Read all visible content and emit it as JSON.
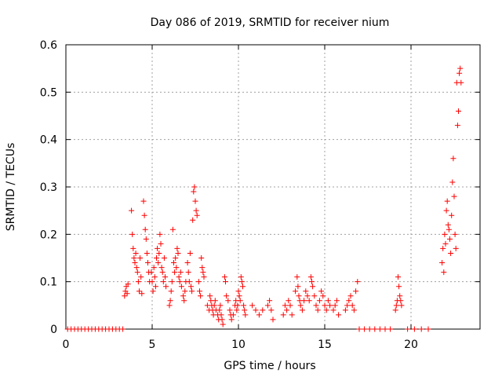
{
  "chart_data": {
    "type": "scatter",
    "title": "Day 086 of 2019, SRMTID for receiver nium",
    "xlabel": "GPS time / hours",
    "ylabel": "SRMTID / TECUs",
    "xlim": [
      0,
      24
    ],
    "ylim": [
      0,
      0.6
    ],
    "x_ticks": [
      0,
      5,
      10,
      15,
      20
    ],
    "y_ticks": [
      0,
      0.1,
      0.2,
      0.3,
      0.4,
      0.5,
      0.6
    ],
    "x_tick_labels": [
      "0",
      "5",
      "10",
      "15",
      "20"
    ],
    "y_tick_labels": [
      "0",
      "0.1",
      "0.2",
      "0.3",
      "0.4",
      "0.5",
      "0.6"
    ],
    "grid": true,
    "marker": "plus",
    "color": "#ff0000",
    "series": [
      {
        "points": [
          [
            0.1,
            0
          ],
          [
            0.3,
            0
          ],
          [
            0.5,
            0
          ],
          [
            0.7,
            0
          ],
          [
            0.9,
            0
          ],
          [
            1.1,
            0
          ],
          [
            1.3,
            0
          ],
          [
            1.5,
            0
          ],
          [
            1.7,
            0
          ],
          [
            1.9,
            0
          ],
          [
            2.1,
            0
          ],
          [
            2.3,
            0
          ],
          [
            2.5,
            0
          ],
          [
            2.7,
            0
          ],
          [
            2.9,
            0
          ],
          [
            3.1,
            0
          ],
          [
            3.3,
            0
          ],
          [
            3.4,
            0.07
          ],
          [
            3.45,
            0.08
          ],
          [
            3.5,
            0.09
          ],
          [
            3.55,
            0.075
          ],
          [
            3.6,
            0.095
          ],
          [
            3.8,
            0.25
          ],
          [
            3.85,
            0.2
          ],
          [
            3.9,
            0.17
          ],
          [
            3.95,
            0.15
          ],
          [
            4.0,
            0.14
          ],
          [
            4.05,
            0.16
          ],
          [
            4.1,
            0.13
          ],
          [
            4.15,
            0.12
          ],
          [
            4.2,
            0.1
          ],
          [
            4.25,
            0.08
          ],
          [
            4.3,
            0.15
          ],
          [
            4.35,
            0.11
          ],
          [
            4.4,
            0.075
          ],
          [
            4.5,
            0.27
          ],
          [
            4.55,
            0.24
          ],
          [
            4.6,
            0.21
          ],
          [
            4.65,
            0.19
          ],
          [
            4.7,
            0.16
          ],
          [
            4.75,
            0.14
          ],
          [
            4.8,
            0.12
          ],
          [
            4.85,
            0.1
          ],
          [
            4.95,
            0.12
          ],
          [
            5.0,
            0.1
          ],
          [
            5.05,
            0.08
          ],
          [
            5.1,
            0.13
          ],
          [
            5.15,
            0.11
          ],
          [
            5.2,
            0.09
          ],
          [
            5.25,
            0.15
          ],
          [
            5.3,
            0.17
          ],
          [
            5.35,
            0.14
          ],
          [
            5.4,
            0.16
          ],
          [
            5.45,
            0.2
          ],
          [
            5.5,
            0.18
          ],
          [
            5.55,
            0.13
          ],
          [
            5.6,
            0.12
          ],
          [
            5.65,
            0.1
          ],
          [
            5.7,
            0.15
          ],
          [
            5.75,
            0.11
          ],
          [
            5.8,
            0.09
          ],
          [
            6.0,
            0.05
          ],
          [
            6.05,
            0.06
          ],
          [
            6.1,
            0.08
          ],
          [
            6.15,
            0.1
          ],
          [
            6.2,
            0.21
          ],
          [
            6.25,
            0.14
          ],
          [
            6.3,
            0.12
          ],
          [
            6.35,
            0.15
          ],
          [
            6.4,
            0.13
          ],
          [
            6.45,
            0.17
          ],
          [
            6.5,
            0.16
          ],
          [
            6.55,
            0.11
          ],
          [
            6.6,
            0.1
          ],
          [
            6.65,
            0.12
          ],
          [
            6.7,
            0.09
          ],
          [
            6.8,
            0.07
          ],
          [
            6.85,
            0.06
          ],
          [
            6.9,
            0.08
          ],
          [
            6.95,
            0.1
          ],
          [
            7.05,
            0.14
          ],
          [
            7.1,
            0.12
          ],
          [
            7.15,
            0.1
          ],
          [
            7.2,
            0.16
          ],
          [
            7.25,
            0.09
          ],
          [
            7.3,
            0.08
          ],
          [
            7.35,
            0.23
          ],
          [
            7.4,
            0.29
          ],
          [
            7.45,
            0.3
          ],
          [
            7.5,
            0.27
          ],
          [
            7.55,
            0.25
          ],
          [
            7.6,
            0.24
          ],
          [
            7.7,
            0.1
          ],
          [
            7.75,
            0.08
          ],
          [
            7.8,
            0.07
          ],
          [
            7.85,
            0.15
          ],
          [
            7.9,
            0.13
          ],
          [
            7.95,
            0.12
          ],
          [
            8.0,
            0.11
          ],
          [
            8.2,
            0.05
          ],
          [
            8.3,
            0.04
          ],
          [
            8.35,
            0.07
          ],
          [
            8.4,
            0.06
          ],
          [
            8.45,
            0.05
          ],
          [
            8.5,
            0.04
          ],
          [
            8.55,
            0.03
          ],
          [
            8.6,
            0.05
          ],
          [
            8.65,
            0.06
          ],
          [
            8.7,
            0.04
          ],
          [
            8.8,
            0.03
          ],
          [
            8.85,
            0.02
          ],
          [
            8.9,
            0.04
          ],
          [
            8.95,
            0.05
          ],
          [
            9.0,
            0.03
          ],
          [
            9.05,
            0.02
          ],
          [
            9.1,
            0.01
          ],
          [
            9.2,
            0.11
          ],
          [
            9.25,
            0.1
          ],
          [
            9.3,
            0.07
          ],
          [
            9.4,
            0.06
          ],
          [
            9.5,
            0.04
          ],
          [
            9.55,
            0.03
          ],
          [
            9.6,
            0.02
          ],
          [
            9.7,
            0.03
          ],
          [
            9.8,
            0.05
          ],
          [
            9.85,
            0.06
          ],
          [
            9.9,
            0.04
          ],
          [
            9.95,
            0.05
          ],
          [
            10.0,
            0.08
          ],
          [
            10.05,
            0.07
          ],
          [
            10.1,
            0.06
          ],
          [
            10.15,
            0.11
          ],
          [
            10.2,
            0.1
          ],
          [
            10.25,
            0.09
          ],
          [
            10.3,
            0.05
          ],
          [
            10.35,
            0.04
          ],
          [
            10.4,
            0.03
          ],
          [
            10.8,
            0.05
          ],
          [
            11.0,
            0.04
          ],
          [
            11.2,
            0.03
          ],
          [
            11.4,
            0.04
          ],
          [
            11.7,
            0.05
          ],
          [
            11.8,
            0.06
          ],
          [
            11.9,
            0.04
          ],
          [
            12.0,
            0.02
          ],
          [
            12.6,
            0.03
          ],
          [
            12.7,
            0.05
          ],
          [
            12.8,
            0.04
          ],
          [
            12.9,
            0.06
          ],
          [
            13.0,
            0.05
          ],
          [
            13.1,
            0.03
          ],
          [
            13.3,
            0.08
          ],
          [
            13.4,
            0.11
          ],
          [
            13.45,
            0.09
          ],
          [
            13.5,
            0.07
          ],
          [
            13.55,
            0.06
          ],
          [
            13.6,
            0.05
          ],
          [
            13.7,
            0.04
          ],
          [
            13.8,
            0.06
          ],
          [
            13.9,
            0.08
          ],
          [
            14.0,
            0.07
          ],
          [
            14.1,
            0.06
          ],
          [
            14.2,
            0.11
          ],
          [
            14.25,
            0.1
          ],
          [
            14.3,
            0.09
          ],
          [
            14.4,
            0.07
          ],
          [
            14.5,
            0.05
          ],
          [
            14.6,
            0.04
          ],
          [
            14.7,
            0.06
          ],
          [
            14.8,
            0.08
          ],
          [
            14.9,
            0.07
          ],
          [
            15.0,
            0.05
          ],
          [
            15.1,
            0.04
          ],
          [
            15.2,
            0.06
          ],
          [
            15.3,
            0.05
          ],
          [
            15.5,
            0.04
          ],
          [
            15.6,
            0.05
          ],
          [
            15.7,
            0.06
          ],
          [
            15.8,
            0.03
          ],
          [
            16.2,
            0.04
          ],
          [
            16.3,
            0.05
          ],
          [
            16.4,
            0.06
          ],
          [
            16.5,
            0.07
          ],
          [
            16.6,
            0.05
          ],
          [
            16.7,
            0.04
          ],
          [
            16.8,
            0.08
          ],
          [
            16.9,
            0.1
          ],
          [
            17.0,
            0
          ],
          [
            17.3,
            0
          ],
          [
            17.6,
            0
          ],
          [
            17.9,
            0
          ],
          [
            18.2,
            0
          ],
          [
            18.5,
            0
          ],
          [
            18.8,
            0
          ],
          [
            19.1,
            0.04
          ],
          [
            19.15,
            0.05
          ],
          [
            19.2,
            0.06
          ],
          [
            19.25,
            0.11
          ],
          [
            19.3,
            0.09
          ],
          [
            19.35,
            0.07
          ],
          [
            19.4,
            0.06
          ],
          [
            19.45,
            0.05
          ],
          [
            19.8,
            0
          ],
          [
            20.2,
            0
          ],
          [
            20.6,
            0
          ],
          [
            21.0,
            0
          ],
          [
            21.8,
            0.14
          ],
          [
            21.85,
            0.17
          ],
          [
            21.9,
            0.12
          ],
          [
            21.95,
            0.2
          ],
          [
            22.0,
            0.18
          ],
          [
            22.05,
            0.25
          ],
          [
            22.1,
            0.27
          ],
          [
            22.15,
            0.22
          ],
          [
            22.2,
            0.21
          ],
          [
            22.25,
            0.19
          ],
          [
            22.3,
            0.16
          ],
          [
            22.35,
            0.24
          ],
          [
            22.4,
            0.31
          ],
          [
            22.45,
            0.36
          ],
          [
            22.5,
            0.28
          ],
          [
            22.55,
            0.2
          ],
          [
            22.6,
            0.17
          ],
          [
            22.65,
            0.52
          ],
          [
            22.7,
            0.43
          ],
          [
            22.75,
            0.46
          ],
          [
            22.8,
            0.54
          ],
          [
            22.85,
            0.55
          ],
          [
            22.9,
            0.52
          ]
        ]
      }
    ]
  }
}
